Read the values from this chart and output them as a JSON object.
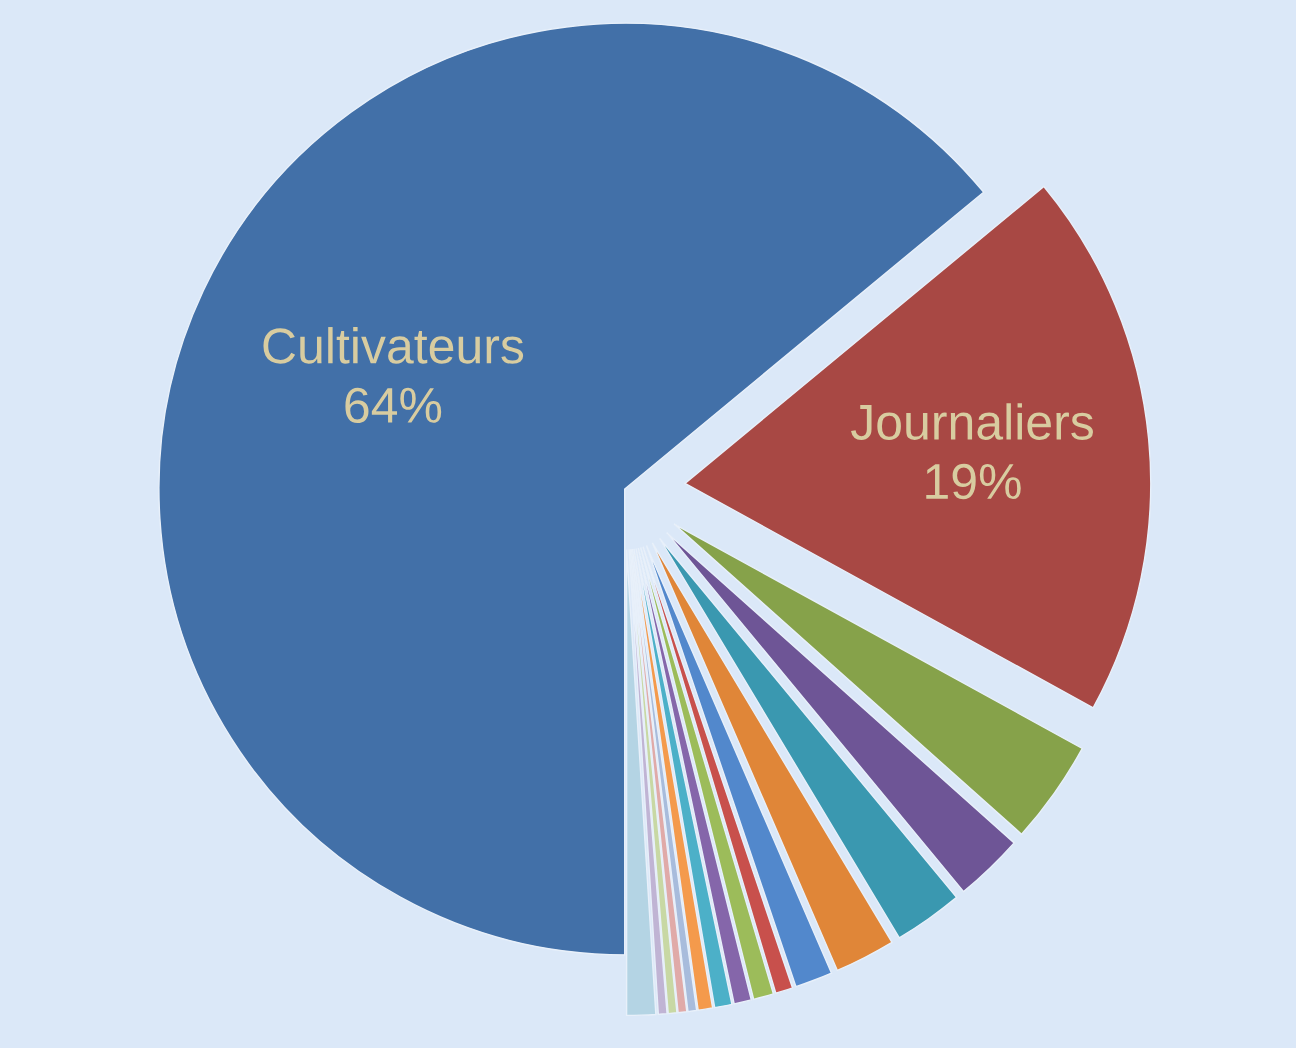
{
  "chart_data": {
    "type": "pie",
    "categories": [
      "Cultivateurs",
      "Journaliers",
      null,
      null,
      null,
      null,
      null,
      null,
      null,
      null,
      null,
      null,
      null,
      null,
      null,
      null,
      null
    ],
    "values": [
      64,
      19,
      3.6,
      2.4,
      2.4,
      2.1,
      1.3,
      0.6,
      0.7,
      0.6,
      0.6,
      0.5,
      0.3,
      0.3,
      0.3,
      0.3,
      1.0
    ],
    "colors": [
      "#4270a8",
      "#a84844",
      "#86a24a",
      "#6e5596",
      "#3a98b0",
      "#e08638",
      "#5288cc",
      "#c8504c",
      "#9cbc5a",
      "#8566aa",
      "#4cb0c8",
      "#f49a4c",
      "#a8bcdc",
      "#e0aaa8",
      "#c8d8a4",
      "#c0b4d4",
      "#b4d4e4"
    ],
    "value_labels": [
      "64%",
      "19%",
      null,
      null,
      null,
      null,
      null,
      null,
      null,
      null,
      null,
      null,
      null,
      null,
      null,
      null,
      null
    ]
  }
}
